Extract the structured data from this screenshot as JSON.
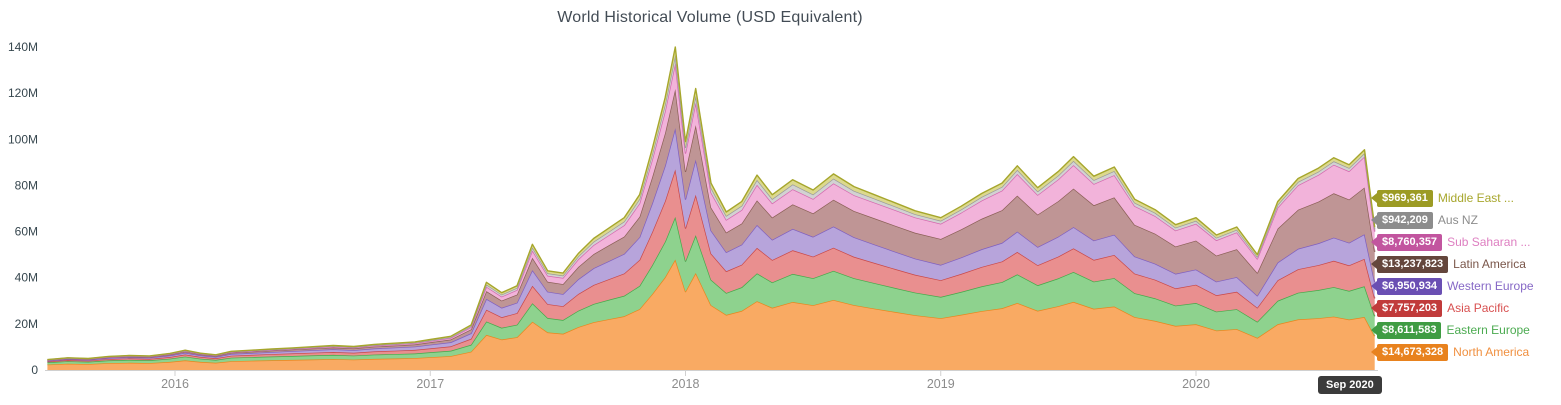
{
  "chart_data": {
    "type": "area",
    "stacked": true,
    "title": "World Historical Volume (USD Equivalent)",
    "xlabel": "",
    "ylabel": "",
    "grid": false,
    "legend_position": "right-labels",
    "ylim_musd": [
      0,
      145
    ],
    "y_tick_values": [
      0,
      20,
      40,
      60,
      80,
      100,
      120,
      140
    ],
    "y_tick_labels": [
      "0",
      "20M",
      "40M",
      "60M",
      "80M",
      "100M",
      "120M",
      "140M"
    ],
    "x_tick_years": [
      2016,
      2017,
      2018,
      2019,
      2020
    ],
    "x_tick_labels": [
      "2016",
      "2017",
      "2018",
      "2019",
      "2020"
    ],
    "x_range_years": [
      2015.5,
      2020.7
    ],
    "x": [
      2015.5,
      2015.58,
      2015.66,
      2015.74,
      2015.82,
      2015.9,
      2015.98,
      2016.04,
      2016.1,
      2016.16,
      2016.22,
      2016.3,
      2016.38,
      2016.46,
      2016.54,
      2016.62,
      2016.7,
      2016.78,
      2016.86,
      2016.94,
      2017.0,
      2017.08,
      2017.16,
      2017.22,
      2017.28,
      2017.34,
      2017.4,
      2017.46,
      2017.52,
      2017.58,
      2017.64,
      2017.7,
      2017.76,
      2017.82,
      2017.87,
      2017.92,
      2017.96,
      2018.0,
      2018.04,
      2018.1,
      2018.16,
      2018.22,
      2018.28,
      2018.34,
      2018.42,
      2018.5,
      2018.58,
      2018.66,
      2018.74,
      2018.82,
      2018.9,
      2019.0,
      2019.08,
      2019.16,
      2019.24,
      2019.3,
      2019.38,
      2019.46,
      2019.52,
      2019.6,
      2019.68,
      2019.76,
      2019.84,
      2019.92,
      2020.0,
      2020.08,
      2020.16,
      2020.24,
      2020.32,
      2020.4,
      2020.48,
      2020.54,
      2020.6,
      2020.66,
      2020.7
    ],
    "totals_musd": [
      4.5,
      5.3,
      5.0,
      5.9,
      6.3,
      6.1,
      7.2,
      8.6,
      7.3,
      6.6,
      8.1,
      8.6,
      9.1,
      9.6,
      10.1,
      10.6,
      10.2,
      11.1,
      11.6,
      12.2,
      13.2,
      14.6,
      19.5,
      38.0,
      33.5,
      36.5,
      54.5,
      43.0,
      42.0,
      50.5,
      57.0,
      61.5,
      66.0,
      76.0,
      96.0,
      118.0,
      140.0,
      99.0,
      122.0,
      81.0,
      68.5,
      73.0,
      84.5,
      76.0,
      82.5,
      78.0,
      85.0,
      79.5,
      76.0,
      72.5,
      69.0,
      66.0,
      71.0,
      76.5,
      81.0,
      88.5,
      79.0,
      86.0,
      92.5,
      84.0,
      88.0,
      74.0,
      69.5,
      63.0,
      66.0,
      58.5,
      62.0,
      50.0,
      73.0,
      83.0,
      87.5,
      92.0,
      89.0,
      95.5,
      61.9
    ],
    "share_keyframe_years": [
      2015.5,
      2017.0,
      2017.9,
      2018.5,
      2019.0,
      2019.5,
      2020.0,
      2020.7
    ],
    "series": [
      {
        "name": "North America",
        "slug": "north-america",
        "fill": "#f9aa63",
        "stroke": "#e8861c",
        "final_value_label": "$14,673,328",
        "final_value_musd": 14.673328,
        "shares": [
          0.52,
          0.42,
          0.34,
          0.36,
          0.34,
          0.32,
          0.3,
          0.237
        ]
      },
      {
        "name": "Eastern Europe",
        "slug": "eastern-europe",
        "fill": "#8ed28e",
        "stroke": "#45a949",
        "final_value_label": "$8,611,583",
        "final_value_musd": 8.611583,
        "shares": [
          0.21,
          0.16,
          0.13,
          0.15,
          0.14,
          0.14,
          0.14,
          0.139
        ]
      },
      {
        "name": "Asia Pacific",
        "slug": "asia-pacific",
        "fill": "#e98f8f",
        "stroke": "#c94848",
        "final_value_label": "$7,757,203",
        "final_value_musd": 7.757203,
        "shares": [
          0.09,
          0.13,
          0.15,
          0.12,
          0.11,
          0.11,
          0.12,
          0.125
        ]
      },
      {
        "name": "Western Europe",
        "slug": "western-europe",
        "fill": "#b7a4db",
        "stroke": "#7f5fc0",
        "final_value_label": "$6,950,934",
        "final_value_musd": 6.950934,
        "shares": [
          0.07,
          0.12,
          0.13,
          0.11,
          0.1,
          0.1,
          0.1,
          0.112
        ]
      },
      {
        "name": "Latin America",
        "slug": "latin-america",
        "fill": "#bf9595",
        "stroke": "#8a5f55",
        "final_value_label": "$13,237,823",
        "final_value_musd": 13.237823,
        "shares": [
          0.05,
          0.08,
          0.12,
          0.13,
          0.17,
          0.18,
          0.19,
          0.214
        ]
      },
      {
        "name": "Sub Saharan Africa",
        "slug": "sub-saharan-africa",
        "fill": "#f2b3da",
        "stroke": "#d466ae",
        "final_value_label": "$8,760,357",
        "final_value_musd": 8.760357,
        "shares": [
          0.02,
          0.04,
          0.08,
          0.08,
          0.1,
          0.11,
          0.11,
          0.142
        ]
      },
      {
        "name": "Aus NZ",
        "slug": "aus-nz",
        "fill": "#d2d2d2",
        "stroke": "#9a9a9a",
        "final_value_label": "$942,209",
        "final_value_musd": 0.942209,
        "shares": [
          0.02,
          0.025,
          0.025,
          0.025,
          0.02,
          0.02,
          0.02,
          0.0152
        ]
      },
      {
        "name": "Middle East",
        "slug": "middle-east",
        "fill": "#dcd98e",
        "stroke": "#a6a62c",
        "final_value_label": "$969,361",
        "final_value_musd": 0.969361,
        "shares": [
          0.02,
          0.025,
          0.025,
          0.025,
          0.02,
          0.02,
          0.02,
          0.0157
        ]
      }
    ]
  },
  "legend": {
    "items": [
      {
        "value": "$969,361",
        "name": "Middle East ...",
        "badge_color": "#9c9b24",
        "text_color": "#a8a72e"
      },
      {
        "value": "$942,209",
        "name": "Aus NZ",
        "badge_color": "#8c8c8c",
        "text_color": "#8c8c8c"
      },
      {
        "value": "$8,760,357",
        "name": "Sub Saharan ...",
        "badge_color": "#c2559f",
        "text_color": "#de7fc1"
      },
      {
        "value": "$13,237,823",
        "name": "Latin America",
        "badge_color": "#64463c",
        "text_color": "#7a564a"
      },
      {
        "value": "$6,950,934",
        "name": "Western Europe",
        "badge_color": "#6a4fb3",
        "text_color": "#8668c6"
      },
      {
        "value": "$7,757,203",
        "name": "Asia Pacific",
        "badge_color": "#c13b3b",
        "text_color": "#d85050"
      },
      {
        "value": "$8,611,583",
        "name": "Eastern Europe",
        "badge_color": "#3f9c43",
        "text_color": "#4cab51"
      },
      {
        "value": "$14,673,328",
        "name": "North America",
        "badge_color": "#e8821e",
        "text_color": "#f09040"
      }
    ]
  },
  "crosshair": {
    "date_label": "Sep 2020"
  }
}
